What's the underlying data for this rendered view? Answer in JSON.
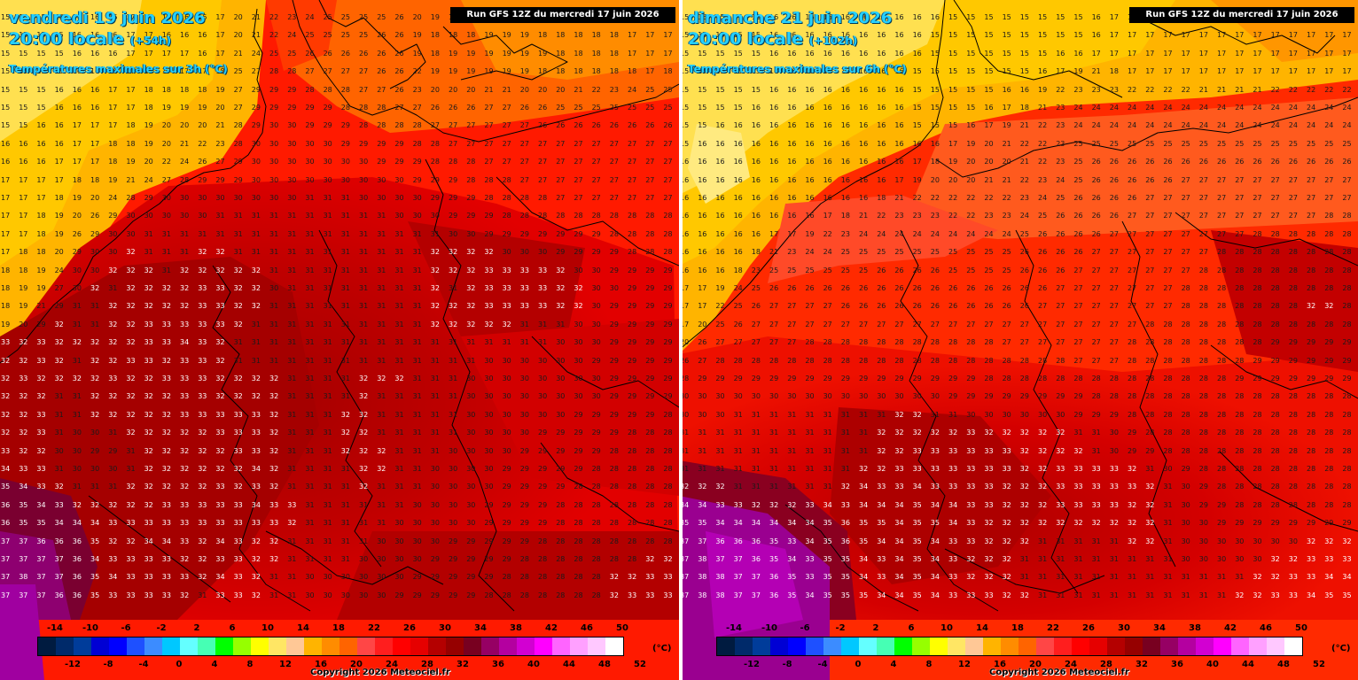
{
  "panels": [
    {
      "date": "vendredi 19 juin 2026",
      "time": "20:00 locale",
      "lead": "(+54h)",
      "parameter": "Températures maximales sur 3h (°C)",
      "run": "Run GFS 12Z du mercredi 17 juin 2026",
      "copyright": "Copyright 2026 Meteociel.fr"
    },
    {
      "date": "dimanche 21 juin 2026",
      "time": "20:00 locale",
      "lead": "(+102h)",
      "parameter": "Températures maximales sur 6h (°C)",
      "run": "Run GFS 12Z du mercredi 17 juin 2026",
      "copyright": "Copyright 2026 Meteociel.fr"
    }
  ],
  "legend": {
    "unit": "(°C)",
    "ticks_top": [
      "-14",
      "-10",
      "-6",
      "-2",
      "2",
      "6",
      "10",
      "14",
      "18",
      "22",
      "26",
      "30",
      "34",
      "38",
      "42",
      "46",
      "50"
    ],
    "ticks_bottom": [
      "-12",
      "-8",
      "-4",
      "0",
      "4",
      "8",
      "12",
      "16",
      "20",
      "24",
      "28",
      "32",
      "36",
      "40",
      "44",
      "48",
      "52"
    ],
    "colors": [
      "#001b40",
      "#002a6a",
      "#003c9a",
      "#0000d4",
      "#0000ff",
      "#1e50ff",
      "#3c8cff",
      "#00c8ff",
      "#64ffff",
      "#46ffb4",
      "#00ff00",
      "#96ff00",
      "#ffff00",
      "#ffe664",
      "#ffc896",
      "#ffb400",
      "#ff8c00",
      "#ff6400",
      "#ff4646",
      "#ff1e1e",
      "#ff0000",
      "#e60000",
      "#b40000",
      "#960000",
      "#780020",
      "#960064",
      "#b400a0",
      "#d200d2",
      "#ff00ff",
      "#ff64ff",
      "#ffa0ff",
      "#ffc8ff",
      "#ffffff"
    ]
  },
  "map_grids": [
    {
      "panel": 0,
      "rows": [
        "15 15 15 16 16 16 16 17 17 16 16 16 17 20 21 22 23 24 25 25 25 25 26 20 19 18 18 18 18 18 18 18 18 18 18 17 17 17",
        "15 15 15 15 16 16 16 17 17 16 16 16 17 20 21 22 24 25 25 25 25 26 26 19 18 18 18 19 19 19 18 18 18 18 18 17 17 17",
        "15 15 15 15 16 16 16 17 17 17 17 16 17 21 24 25 25 26 26 26 26 26 26 19 18 19 19 19 19 19 19 18 18 18 18 17 17 17",
        "15 15 15 15 16 16 16 17 17 17 17 17 18 25 27 28 28 27 27 27 27 26 26 22 19 19 19 19 19 19 18 18 18 18 18 18 17 18",
        "15 15 15 16 16 16 17 17 18 18 18 18 19 27 29 29 29 28 28 28 27 27 26 23 20 20 20 21 21 20 20 20 21 22 23 24 25 25",
        "15 15 15 16 16 16 17 17 18 19 19 19 20 27 29 29 29 29 29 28 28 28 27 27 26 26 26 27 27 26 26 25 25 25 25 25 25 25",
        "15 15 16 16 17 17 17 18 19 20 20 20 21 28 29 30 30 29 29 29 28 28 28 28 27 27 27 27 27 27 26 26 26 26 26 26 26 26",
        "16 16 16 16 17 17 18 18 19 20 21 22 23 28 30 30 30 30 30 29 29 29 29 28 28 27 27 27 27 27 27 27 27 27 27 27 27 27",
        "16 16 16 17 17 17 18 19 20 22 24 26 27 29 30 30 30 30 30 30 30 29 29 29 28 28 28 27 27 27 27 27 27 27 27 27 27 27",
        "17 17 17 17 18 18 19 21 24 27 28 29 29 29 30 30 30 30 30 30 30 30 30 29 29 29 28 28 28 27 27 27 27 27 27 27 27 27",
        "17 17 17 18 19 20 24 28 29 30 30 30 30 30 30 30 30 31 31 31 30 30 30 30 29 29 29 28 28 28 28 27 27 27 27 27 27 27",
        "17 17 18 19 20 26 29 30 30 30 30 30 31 31 31 31 31 31 31 31 31 31 30 30 30 29 29 29 28 28 28 28 28 28 28 28 28 28",
        "17 17 18 19 26 29 30 30 31 31 31 31 31 31 31 31 31 31 31 31 31 31 31 31 31 30 30 29 29 29 29 29 29 29 28 28 28 28",
        "17 18 18 20 29 30 30 32 31 31 31 32 32 31 31 31 31 31 31 31 31 31 31 31 32 32 32 32 30 30 30 29 29 29 29 28 28 28",
        "18 18 19 24 30 30 32 32 32 31 32 32 32 32 32 31 31 31 31 31 31 31 31 31 32 32 32 33 33 33 33 32 30 30 29 29 29 29",
        "18 19 19 27 30 32 31 32 32 32 32 33 33 32 32 30 31 31 31 31 31 31 31 31 32 31 32 33 33 33 33 32 32 30 30 29 29 29",
        "18 19 21 29 31 31 32 32 32 32 32 33 33 32 32 31 31 31 31 31 31 31 31 31 32 32 32 33 33 33 33 32 32 30 29 29 29 29",
        "19 20 29 32 31 31 32 32 33 33 33 33 33 32 31 31 31 31 31 31 31 31 31 31 32 32 32 32 32 31 31 31 30 30 29 29 29 29",
        "33 32 33 32 32 32 32 32 33 33 34 33 32 31 31 31 31 31 31 31 31 31 31 31 31 31 31 31 31 31 31 30 30 30 29 29 29 29",
        "32 32 33 32 31 32 32 33 33 32 33 33 32 31 31 31 31 31 31 31 31 31 31 31 31 31 31 30 30 30 30 30 30 29 29 29 29 29",
        "32 33 32 32 32 32 33 32 32 33 33 33 32 32 32 32 31 31 31 31 32 32 32 31 31 31 30 30 30 30 30 30 30 30 29 29 29 29",
        "32 32 32 31 31 32 32 32 32 32 33 33 32 32 32 32 31 31 31 31 32 31 31 31 31 31 30 30 30 30 30 30 30 30 29 29 29 29",
        "32 32 33 31 31 32 32 32 32 32 33 33 33 33 33 32 31 31 31 32 32 31 31 31 31 31 30 30 30 30 30 30 29 29 29 29 29 28",
        "32 32 33 31 30 30 31 32 32 32 32 32 33 33 33 32 31 31 31 32 32 31 31 31 31 31 30 30 30 30 29 29 29 29 29 28 28 28",
        "33 32 32 30 30 29 29 31 32 32 32 32 32 33 33 32 31 31 31 32 32 32 31 31 31 30 30 30 30 29 29 29 29 29 28 28 28 28",
        "34 33 33 31 30 30 30 31 32 32 32 32 32 32 34 32 31 31 31 31 32 32 31 31 30 30 30 30 29 29 29 29 29 28 28 28 28 28",
        "35 34 33 32 31 31 31 32 32 32 32 32 33 32 33 32 31 31 31 31 32 31 31 31 30 30 30 30 29 29 29 29 28 28 28 28 28 28",
        "36 35 34 33 32 32 32 32 32 33 33 33 33 33 34 33 33 31 31 31 31 31 31 30 30 30 30 29 29 29 29 28 28 28 28 28 28 28",
        "36 35 35 34 34 34 33 33 33 33 33 33 33 33 33 33 32 31 31 31 31 31 30 30 30 30 30 29 29 29 29 28 28 28 28 28 28 28",
        "37 37 36 36 36 35 32 32 34 34 33 32 34 33 32 32 31 31 31 31 31 30 30 30 30 29 29 29 29 29 28 28 28 28 28 28 28 28",
        "37 37 37 37 36 34 33 33 33 33 32 32 33 33 32 32 31 31 31 31 30 30 30 30 29 29 29 29 29 28 28 28 28 28 28 28 32 32",
        "37 38 37 37 36 35 34 33 33 33 33 32 34 33 32 31 31 30 30 30 30 30 30 29 29 29 29 29 28 28 28 28 28 28 32 32 33 33",
        "37 37 37 36 36 35 33 33 33 33 32 31 33 33 32 31 31 30 30 30 30 30 29 29 29 29 29 28 28 28 28 28 28 28 32 33 33 33"
      ]
    },
    {
      "panel": 1,
      "rows": [
        "15 15 15 15 15 16 16 16 16 16 16 16 16 16 16 15 15 15 15 15 15 15 15 16 17 17 17 17 17 17 17 17 17 17 17 17 17 17",
        "15 15 15 15 15 16 16 16 16 16 16 16 16 16 15 15 15 15 15 15 15 15 15 16 17 17 17 17 17 17 17 17 17 17 17 17 17 17",
        "15 15 15 15 15 16 16 16 16 16 16 16 16 16 15 15 15 15 15 15 15 16 16 17 17 17 17 17 17 17 17 17 17 17 17 17 17 17",
        "15 15 15 15 15 16 16 16 16 16 16 16 16 15 15 15 15 15 15 15 16 17 19 21 18 17 17 17 17 17 17 17 17 17 17 17 17 17",
        "15 15 15 15 15 16 16 16 16 16 16 16 16 15 15 15 15 15 16 16 19 22 23 23 23 22 22 22 22 21 21 21 21 22 22 22 22 22",
        "15 15 15 15 16 16 16 16 16 16 16 16 16 15 15 15 15 16 17 18 21 23 24 24 24 24 24 24 24 24 24 24 24 24 24 24 24 24",
        "15 15 16 16 16 16 16 16 16 16 16 16 16 15 15 15 16 17 19 21 22 23 24 24 24 24 24 24 24 24 24 24 24 24 24 24 24 24",
        "15 16 16 16 16 16 16 16 16 16 16 16 16 16 16 17 19 20 21 22 22 23 25 25 25 25 25 25 25 25 25 25 25 25 25 25 25 25",
        "16 16 16 16 16 16 16 16 16 16 16 16 16 17 18 19 20 20 20 21 22 23 25 26 26 26 26 26 26 26 26 26 26 26 26 26 26 26",
        "16 16 16 16 16 16 16 16 16 16 16 16 17 19 20 20 20 21 21 22 23 24 25 26 26 26 26 26 27 27 27 27 27 27 27 27 27 27",
        "16 16 16 16 16 16 16 16 16 16 16 18 21 22 22 22 22 22 22 23 24 25 26 26 26 26 27 27 27 27 27 27 27 27 27 27 27 27",
        "16 16 16 16 16 16 16 16 17 18 21 22 23 23 23 22 22 23 23 24 25 26 26 26 26 27 27 27 27 27 27 27 27 27 27 27 28 28",
        "16 16 16 16 16 17 17 19 22 23 24 24 24 24 24 24 24 24 24 25 26 26 26 26 27 27 27 27 27 27 27 27 28 28 28 28 28 28",
        "16 16 16 16 18 21 23 24 24 25 25 25 25 25 25 25 25 25 25 26 26 26 26 27 27 27 27 27 27 27 28 28 28 28 28 28 28 28",
        "16 16 16 18 23 25 25 25 25 25 25 26 26 26 26 25 25 25 25 26 26 26 27 27 27 27 27 27 27 28 28 28 28 28 28 28 28 28",
        "17 17 19 24 25 26 26 26 26 26 26 26 26 26 26 26 26 26 26 26 26 27 27 27 27 27 27 27 28 28 28 28 28 28 28 28 28 28",
        "17 17 22 25 26 27 27 27 27 26 26 26 26 26 26 26 26 26 26 26 27 27 27 27 27 27 27 27 28 28 28 28 28 28 28 32 32 28",
        "17 20 25 26 27 27 27 27 27 27 27 27 27 27 27 27 27 27 27 27 27 27 27 27 27 27 28 28 28 28 28 28 28 28 28 28 28 28",
        "20 26 27 27 27 27 27 28 28 28 28 28 28 28 28 28 28 28 27 27 27 27 27 27 27 28 28 28 28 28 28 28 28 29 29 29 29 29",
        "26 27 28 28 28 28 28 28 28 28 28 28 28 28 28 28 28 28 28 28 28 28 27 27 27 28 28 28 28 28 28 28 29 29 29 29 29 29",
        "28 29 29 29 29 29 29 29 29 29 29 29 29 29 29 29 29 28 28 28 28 28 28 28 28 28 28 28 28 28 28 29 29 29 29 29 29 29",
        "30 30 30 30 30 30 30 30 30 30 30 30 30 30 30 29 29 29 29 29 29 29 29 28 28 28 28 28 28 28 28 28 28 28 28 28 28 28",
        "30 30 30 31 31 31 31 31 31 31 31 31 32 32 31 31 30 30 30 30 30 30 29 29 29 28 28 28 28 28 28 28 28 28 28 28 28 28",
        "31 31 31 31 31 31 31 31 31 31 31 32 32 32 32 32 33 32 32 32 32 32 31 31 30 29 28 28 28 28 28 28 28 28 28 28 28 28",
        "31 31 31 31 31 31 31 31 31 31 31 32 32 33 33 33 33 33 33 32 32 32 32 31 30 29 29 28 28 28 28 28 28 28 28 28 28 28",
        "31 31 31 31 31 31 31 31 31 31 32 32 33 33 33 33 33 33 33 32 32 33 33 33 33 32 31 30 29 28 28 28 28 28 28 28 28 28",
        "32 32 32 31 31 31 31 31 31 32 34 33 33 34 33 33 33 33 32 32 32 33 33 33 33 33 32 31 30 29 28 28 28 28 28 28 28 28",
        "34 34 33 33 32 32 32 33 34 33 34 34 34 35 34 34 33 33 32 32 32 33 33 33 33 32 32 31 30 29 29 28 28 28 28 28 28 28",
        "35 35 34 34 34 34 34 34 35 36 35 35 34 35 35 34 33 32 32 32 32 32 32 32 32 32 32 31 30 30 29 29 29 29 29 29 29 29",
        "37 37 36 36 36 35 33 34 35 36 35 34 34 35 34 33 33 32 32 32 31 31 31 31 31 32 32 31 30 30 30 30 30 30 30 32 32 32",
        "37 38 37 37 36 35 34 33 35 35 34 33 34 35 34 33 32 32 32 31 31 31 31 31 31 31 31 31 30 30 30 30 30 32 32 33 33 33",
        "37 38 38 37 37 36 35 33 35 35 34 33 34 35 34 33 32 32 32 31 31 31 31 31 31 31 31 31 31 31 31 31 32 32 33 33 34 34",
        "37 38 38 37 37 36 35 34 35 35 35 34 34 35 34 33 33 33 32 32 31 31 31 31 31 31 31 31 31 31 31 32 32 33 33 34 35 35"
      ]
    }
  ]
}
